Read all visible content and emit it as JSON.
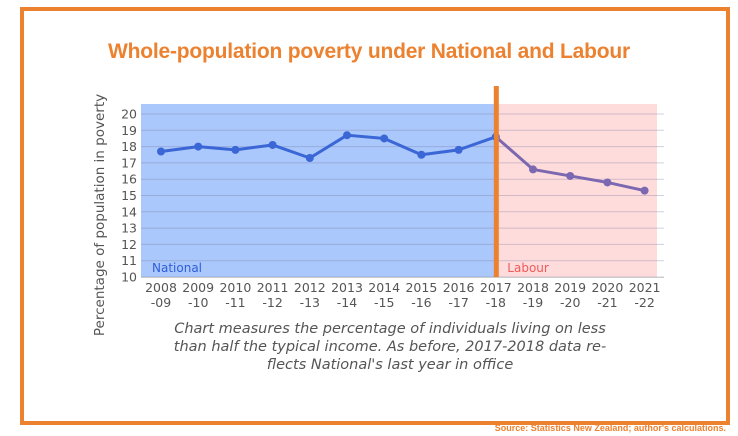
{
  "chart_data": {
    "type": "line",
    "title": "Whole-population poverty under National and Labour",
    "xlabel": "",
    "ylabel": "Percentage of population in poverty",
    "ylim": [
      10,
      20
    ],
    "yticks": [
      10,
      11,
      12,
      13,
      14,
      15,
      16,
      17,
      18,
      19,
      20
    ],
    "grid": true,
    "categories": [
      "2008-09",
      "2009-10",
      "2010-11",
      "2011-12",
      "2012-13",
      "2013-14",
      "2014-15",
      "2015-16",
      "2016-17",
      "2017-18",
      "2018-19",
      "2019-20",
      "2020-21",
      "2021-22"
    ],
    "category_labels": [
      [
        "2008",
        "-09"
      ],
      [
        "2009",
        "-10"
      ],
      [
        "2010",
        "-11"
      ],
      [
        "2011",
        "-12"
      ],
      [
        "2012",
        "-13"
      ],
      [
        "2013",
        "-14"
      ],
      [
        "2014",
        "-15"
      ],
      [
        "2015",
        "-16"
      ],
      [
        "2016",
        "-17"
      ],
      [
        "2017",
        "-18"
      ],
      [
        "2018",
        "-19"
      ],
      [
        "2019",
        "-20"
      ],
      [
        "2020",
        "-21"
      ],
      [
        "2021",
        "-22"
      ]
    ],
    "series": [
      {
        "name": "National",
        "color": "#3a66d6",
        "start_index": 0,
        "values": [
          17.7,
          18.0,
          17.8,
          18.1,
          17.3,
          18.7,
          18.5,
          17.5,
          17.8,
          18.6
        ]
      },
      {
        "name": "Labour",
        "color": "#7c68b0",
        "start_index": 9,
        "values": [
          18.6,
          16.6,
          16.2,
          15.8,
          15.3
        ]
      }
    ],
    "regions": [
      {
        "name": "National",
        "label": "National",
        "from_index": 0,
        "to_index": 9,
        "fill": "#aac8fb",
        "label_color": "#2f5ed8"
      },
      {
        "name": "Labour",
        "label": "Labour",
        "from_index": 9,
        "to_index": 13,
        "fill": "#ffdcdc",
        "label_color": "#ee5a5a"
      }
    ],
    "divider": {
      "at_index": 9,
      "color": "#ec8130"
    },
    "annotations": [],
    "caption": "Chart measures the percentage of individuals living on less than half the typical income. As before, 2017-2018 data reflects National's last year in office"
  },
  "title": "Whole-population poverty under National and Labour",
  "caption_lines": [
    "Chart measures the percentage of individuals living on less",
    "than half the typical income. As before, 2017-2018 data re-",
    "flects National's last year in office"
  ],
  "source": "Source: Statistics New Zealand; author's calculations.",
  "colors": {
    "accent": "#ec8130",
    "national": "#3a66d6",
    "labour": "#7c68b0"
  }
}
